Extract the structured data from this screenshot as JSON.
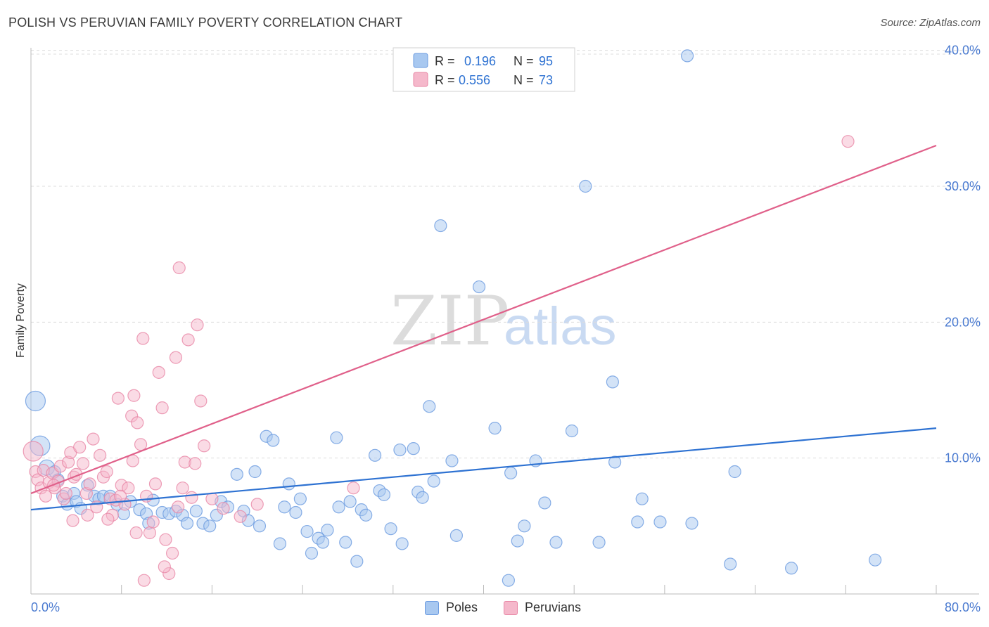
{
  "title": "POLISH VS PERUVIAN FAMILY POVERTY CORRELATION CHART",
  "source": "Source: ZipAtlas.com",
  "watermark": {
    "zip": "ZIP",
    "atlas": "atlas"
  },
  "colors": {
    "poles_fill": "#a8c8f0",
    "poles_stroke": "#6b9be0",
    "poles_line": "#2e72d2",
    "peruvians_fill": "#f5b8cb",
    "peruvians_stroke": "#e887a6",
    "peruvians_line": "#e0608a",
    "tick_text": "#4a7ad0",
    "grid": "#dddddd"
  },
  "legend": {
    "r_label": "R =",
    "n_label": "N =",
    "poles": {
      "r": "0.196",
      "n": "95"
    },
    "peruvians": {
      "r": "0.556",
      "n": "73"
    }
  },
  "chart_data": {
    "type": "scatter",
    "title": "POLISH VS PERUVIAN FAMILY POVERTY CORRELATION CHART",
    "xlabel": "",
    "ylabel": "Family Poverty",
    "xlim": [
      0,
      80
    ],
    "ylim": [
      0,
      40.5
    ],
    "x_tick_labels": [
      "0.0%",
      "80.0%"
    ],
    "y_ticks": [
      10,
      20,
      30,
      40
    ],
    "y_tick_labels": [
      "10.0%",
      "20.0%",
      "30.0%",
      "40.0%"
    ],
    "grid": "horizontal dashed",
    "legend_position": "top-center and bottom",
    "series": [
      {
        "name": "Poles",
        "r": 0.196,
        "n": 95,
        "trend": {
          "x": [
            0,
            80
          ],
          "y": [
            6.2,
            12.2
          ]
        },
        "points": [
          [
            0.4,
            14.2,
            "l"
          ],
          [
            0.8,
            10.9,
            "l"
          ],
          [
            1.4,
            9.3,
            "m"
          ],
          [
            2.1,
            9.0
          ],
          [
            2.4,
            8.4
          ],
          [
            2.8,
            7.2
          ],
          [
            3.2,
            6.6
          ],
          [
            3.8,
            7.4
          ],
          [
            4.0,
            6.8
          ],
          [
            4.4,
            6.3
          ],
          [
            5.0,
            8.0
          ],
          [
            5.6,
            7.2
          ],
          [
            6.0,
            7.0
          ],
          [
            6.4,
            7.2
          ],
          [
            7.0,
            7.2
          ],
          [
            7.6,
            6.6
          ],
          [
            8.2,
            5.9
          ],
          [
            8.8,
            6.8
          ],
          [
            9.6,
            6.2
          ],
          [
            10.2,
            5.9
          ],
          [
            10.4,
            5.2
          ],
          [
            10.8,
            6.9
          ],
          [
            11.6,
            6.0
          ],
          [
            12.2,
            5.9
          ],
          [
            12.8,
            6.1
          ],
          [
            13.4,
            5.8
          ],
          [
            13.8,
            5.2
          ],
          [
            14.6,
            6.1
          ],
          [
            15.2,
            5.2
          ],
          [
            15.8,
            5.0
          ],
          [
            16.4,
            5.8
          ],
          [
            16.8,
            6.8
          ],
          [
            17.4,
            6.4
          ],
          [
            18.2,
            8.8
          ],
          [
            18.8,
            6.1
          ],
          [
            19.2,
            5.4
          ],
          [
            19.8,
            9.0
          ],
          [
            20.2,
            5.0
          ],
          [
            20.8,
            11.6
          ],
          [
            21.4,
            11.3
          ],
          [
            22.0,
            3.7
          ],
          [
            22.4,
            6.4
          ],
          [
            22.8,
            8.1
          ],
          [
            23.4,
            6.0
          ],
          [
            23.8,
            7.0
          ],
          [
            24.4,
            4.6
          ],
          [
            24.8,
            3.0
          ],
          [
            25.4,
            4.1
          ],
          [
            25.8,
            3.8
          ],
          [
            26.2,
            4.7
          ],
          [
            27.0,
            11.5
          ],
          [
            27.2,
            6.4
          ],
          [
            27.8,
            3.8
          ],
          [
            28.2,
            6.8
          ],
          [
            28.8,
            2.4
          ],
          [
            29.2,
            6.2
          ],
          [
            29.6,
            5.8
          ],
          [
            30.4,
            10.2
          ],
          [
            30.8,
            7.6
          ],
          [
            31.2,
            7.3
          ],
          [
            31.8,
            4.8
          ],
          [
            32.6,
            10.6
          ],
          [
            32.8,
            3.7
          ],
          [
            33.8,
            10.7
          ],
          [
            34.2,
            7.5
          ],
          [
            34.6,
            7.1
          ],
          [
            35.2,
            13.8
          ],
          [
            35.6,
            8.3
          ],
          [
            36.0,
            37.8
          ],
          [
            36.2,
            27.1
          ],
          [
            37.2,
            9.8
          ],
          [
            37.6,
            4.3
          ],
          [
            39.6,
            22.6
          ],
          [
            41.0,
            12.2
          ],
          [
            42.2,
            1.0
          ],
          [
            42.4,
            8.9
          ],
          [
            43.0,
            3.9
          ],
          [
            43.6,
            5.0
          ],
          [
            44.6,
            9.8
          ],
          [
            45.4,
            6.7
          ],
          [
            46.4,
            3.8
          ],
          [
            47.8,
            12.0
          ],
          [
            49.0,
            30.0
          ],
          [
            50.2,
            3.8
          ],
          [
            51.4,
            15.6
          ],
          [
            51.6,
            9.7
          ],
          [
            53.6,
            5.3
          ],
          [
            55.6,
            5.3
          ],
          [
            58.4,
            5.2
          ],
          [
            61.8,
            2.2
          ],
          [
            62.2,
            9.0
          ],
          [
            54.0,
            7.0
          ],
          [
            67.2,
            1.9
          ],
          [
            58.0,
            39.6
          ],
          [
            74.6,
            2.5
          ]
        ]
      },
      {
        "name": "Peruvians",
        "r": 0.556,
        "n": 73,
        "trend": {
          "x": [
            0,
            80
          ],
          "y": [
            7.4,
            33.0
          ]
        },
        "points": [
          [
            0.2,
            10.5,
            "l"
          ],
          [
            0.4,
            9.0
          ],
          [
            0.6,
            8.4
          ],
          [
            0.9,
            7.8
          ],
          [
            1.1,
            9.1
          ],
          [
            1.3,
            7.2
          ],
          [
            1.6,
            8.2
          ],
          [
            1.9,
            8.9
          ],
          [
            2.1,
            7.8
          ],
          [
            2.4,
            8.3
          ],
          [
            2.6,
            9.4
          ],
          [
            2.9,
            7.0
          ],
          [
            3.1,
            7.4
          ],
          [
            3.3,
            9.7
          ],
          [
            3.5,
            10.4
          ],
          [
            3.8,
            8.6
          ],
          [
            4.0,
            8.8
          ],
          [
            4.3,
            10.8
          ],
          [
            4.6,
            9.6
          ],
          [
            4.9,
            7.4
          ],
          [
            5.2,
            8.1
          ],
          [
            5.5,
            11.4
          ],
          [
            5.8,
            6.4
          ],
          [
            6.1,
            10.2
          ],
          [
            6.4,
            8.6
          ],
          [
            6.7,
            9.0
          ],
          [
            7.0,
            7.0
          ],
          [
            7.2,
            5.8
          ],
          [
            7.5,
            6.9
          ],
          [
            7.7,
            14.4
          ],
          [
            8.0,
            8.0
          ],
          [
            8.3,
            6.6
          ],
          [
            8.6,
            7.8
          ],
          [
            8.9,
            13.1
          ],
          [
            9.1,
            14.6
          ],
          [
            9.4,
            12.6
          ],
          [
            9.7,
            11.0
          ],
          [
            9.9,
            18.8
          ],
          [
            10.2,
            7.2
          ],
          [
            10.5,
            4.5
          ],
          [
            10.8,
            5.3
          ],
          [
            11.0,
            8.1
          ],
          [
            11.3,
            16.3
          ],
          [
            11.6,
            13.7
          ],
          [
            11.9,
            4.0
          ],
          [
            12.2,
            1.5
          ],
          [
            12.5,
            3.0
          ],
          [
            12.8,
            17.4
          ],
          [
            13.1,
            24.0
          ],
          [
            13.4,
            7.8
          ],
          [
            13.6,
            9.7
          ],
          [
            13.9,
            18.7
          ],
          [
            14.2,
            7.1
          ],
          [
            14.5,
            9.6
          ],
          [
            14.7,
            19.8
          ],
          [
            15.0,
            14.2
          ],
          [
            15.3,
            10.9
          ],
          [
            2.0,
            8.0
          ],
          [
            3.7,
            5.4
          ],
          [
            5.0,
            5.8
          ],
          [
            6.8,
            5.5
          ],
          [
            7.9,
            7.2
          ],
          [
            9.3,
            4.5
          ],
          [
            10.0,
            1.0
          ],
          [
            11.8,
            2.0
          ],
          [
            16.0,
            7.0
          ],
          [
            17.0,
            6.3
          ],
          [
            18.5,
            5.7
          ],
          [
            20.0,
            6.6
          ],
          [
            28.5,
            7.8
          ],
          [
            13.0,
            6.4
          ],
          [
            9.0,
            9.8
          ],
          [
            72.2,
            33.3
          ]
        ]
      }
    ]
  },
  "bottom_legend": {
    "poles": "Poles",
    "peruvians": "Peruvians"
  }
}
